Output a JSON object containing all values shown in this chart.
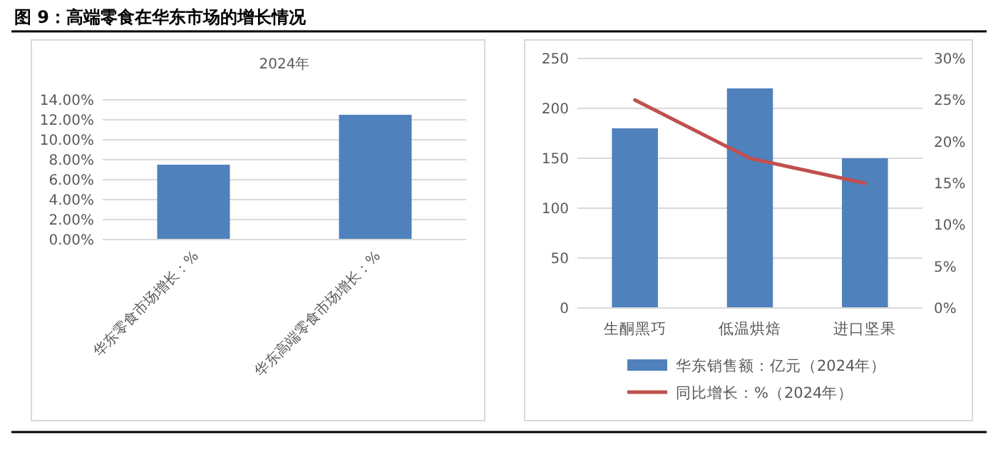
{
  "chart_data": [
    {
      "type": "bar",
      "title": "图 9：高端零食在华东市场的增长情况",
      "subtitle": "2024年",
      "categories": [
        "华东零食市场增长：%",
        "华东高端零食市场增长：%"
      ],
      "values": [
        7.5,
        12.5
      ],
      "color": "#4f81bd",
      "ylim": [
        0,
        14
      ],
      "yticks": [
        {
          "value": 0,
          "label": "0.00%"
        },
        {
          "value": 2,
          "label": "2.00%"
        },
        {
          "value": 4,
          "label": "4.00%"
        },
        {
          "value": 6,
          "label": "6.00%"
        },
        {
          "value": 8,
          "label": "8.00%"
        },
        {
          "value": 10,
          "label": "10.00%"
        },
        {
          "value": 12,
          "label": "12.00%"
        },
        {
          "value": 14,
          "label": "14.00%"
        }
      ],
      "grid": "y",
      "legend": false
    },
    {
      "type": "bar",
      "categories": [
        "生酮黑巧",
        "低温烘焙",
        "进口坚果"
      ],
      "series": [
        {
          "name": "华东销售额：亿元（2024年）",
          "color": "#4f81bd",
          "values": [
            180,
            220,
            150
          ]
        },
        {
          "name": "同比增长：%（2024年）",
          "type": "line",
          "axis": "y2",
          "color": "#c0504d",
          "values": [
            25,
            18,
            15
          ]
        }
      ],
      "ylim": [
        0,
        250
      ],
      "yticks": [
        0,
        50,
        100,
        150,
        200,
        250
      ],
      "y2lim": [
        0,
        30
      ],
      "y2ticks": [
        {
          "value": 0,
          "label": "0%"
        },
        {
          "value": 5,
          "label": "5%"
        },
        {
          "value": 10,
          "label": "10%"
        },
        {
          "value": 15,
          "label": "15%"
        },
        {
          "value": 20,
          "label": "20%"
        },
        {
          "value": 25,
          "label": "25%"
        },
        {
          "value": 30,
          "label": "30%"
        }
      ],
      "grid": "y",
      "legend": "bottom"
    }
  ]
}
